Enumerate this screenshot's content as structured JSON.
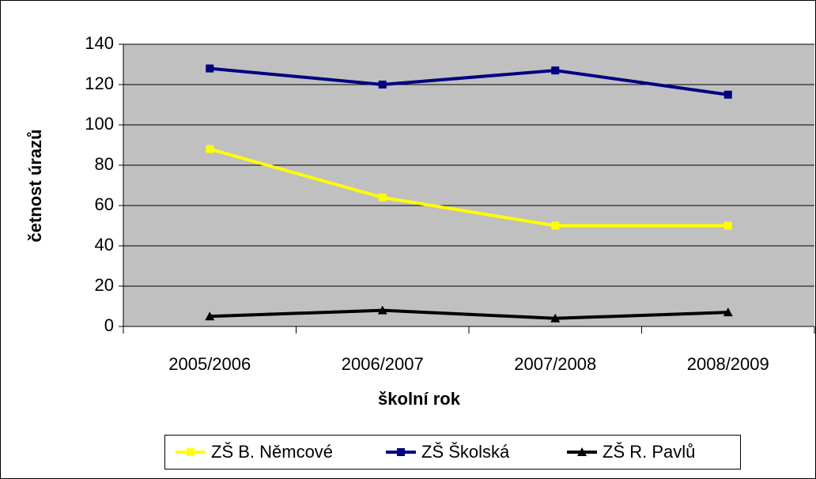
{
  "chart_data": {
    "type": "line",
    "x_label": "školní rok",
    "y_label": "četnost úrazů",
    "categories": [
      "2005/2006",
      "2006/2007",
      "2007/2008",
      "2008/2009"
    ],
    "series": [
      {
        "name": "ZŠ B. Němcové",
        "color": "#ffff00",
        "marker": "square",
        "values": [
          88,
          64,
          50,
          50
        ]
      },
      {
        "name": "ZŠ Školská",
        "color": "#000080",
        "marker": "square",
        "values": [
          128,
          120,
          127,
          115
        ]
      },
      {
        "name": "ZŠ R. Pavlů",
        "color": "#000000",
        "marker": "triangle",
        "values": [
          5,
          8,
          4,
          7
        ]
      }
    ],
    "ylim": [
      0,
      140
    ],
    "yticks": [
      0,
      20,
      40,
      60,
      80,
      100,
      120,
      140
    ],
    "grid": true,
    "legend": "bottom",
    "plot_background": "#c0c0c0"
  }
}
